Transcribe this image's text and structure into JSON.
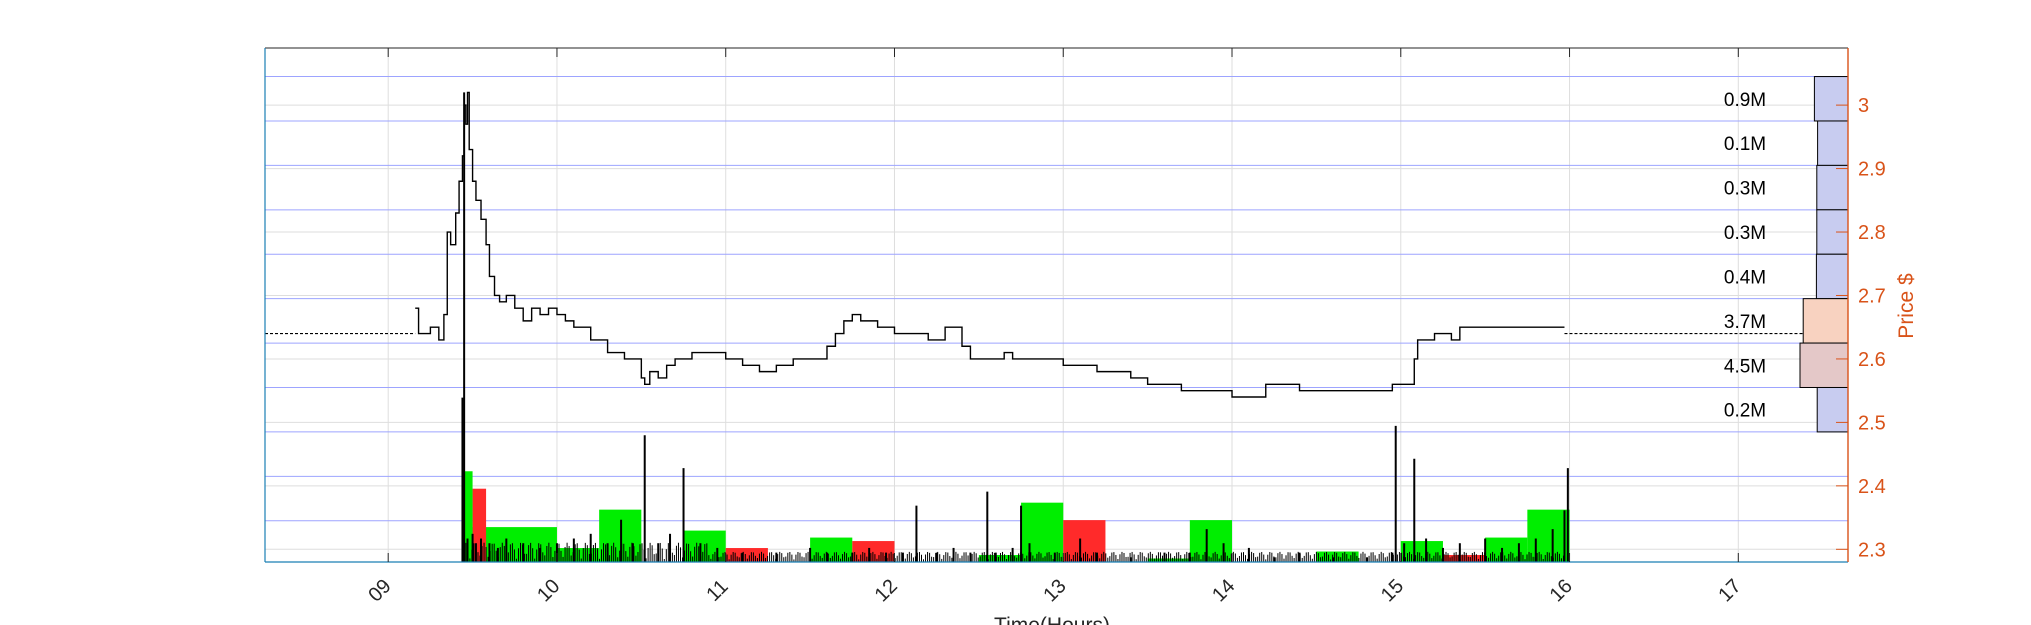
{
  "chart_data": {
    "type": "line",
    "title": "",
    "xlabel": "Time(Hours)",
    "ylabel": "Price $",
    "xlim": [
      8.27,
      17.65
    ],
    "ylim": [
      2.28,
      3.09
    ],
    "y_axis_side": "right",
    "grid": true,
    "x_ticks": [
      9,
      10,
      11,
      12,
      13,
      14,
      15,
      16,
      17
    ],
    "x_tick_labels": [
      "09",
      "10",
      "11",
      "12",
      "13",
      "14",
      "15",
      "16",
      "17"
    ],
    "y_ticks": [
      2.3,
      2.4,
      2.5,
      2.6,
      2.7,
      2.8,
      2.9,
      3.0
    ],
    "y_tick_labels": [
      "2.3",
      "2.4",
      "2.5",
      "2.6",
      "2.7",
      "2.8",
      "2.9",
      "3"
    ],
    "colors": {
      "price": "#000000",
      "up": "#00ee00",
      "down": "#ff2a2a",
      "profile_blue": "#c8ccf0",
      "profile_peach": "#f8d2c0",
      "profile_pink": "#e4c8c8",
      "price_band": "#9da4ff",
      "right_axis": "#d95319",
      "frame": "#1a7fb5"
    },
    "reference_price": 2.64,
    "price_series": {
      "name": "",
      "x": [
        9.16,
        9.18,
        9.2,
        9.25,
        9.3,
        9.33,
        9.35,
        9.37,
        9.4,
        9.42,
        9.44,
        9.45,
        9.46,
        9.47,
        9.48,
        9.5,
        9.52,
        9.55,
        9.58,
        9.6,
        9.63,
        9.66,
        9.7,
        9.75,
        9.8,
        9.85,
        9.9,
        9.95,
        10.0,
        10.05,
        10.1,
        10.2,
        10.3,
        10.4,
        10.5,
        10.52,
        10.55,
        10.6,
        10.65,
        10.7,
        10.8,
        10.9,
        11.0,
        11.1,
        11.2,
        11.3,
        11.4,
        11.5,
        11.6,
        11.65,
        11.7,
        11.75,
        11.8,
        11.9,
        12.0,
        12.1,
        12.2,
        12.3,
        12.4,
        12.45,
        12.5,
        12.6,
        12.65,
        12.7,
        12.8,
        12.9,
        13.0,
        13.1,
        13.2,
        13.3,
        13.4,
        13.5,
        13.6,
        13.7,
        13.8,
        13.9,
        14.0,
        14.05,
        14.1,
        14.2,
        14.3,
        14.4,
        14.5,
        14.6,
        14.7,
        14.8,
        14.9,
        14.95,
        15.0,
        15.05,
        15.08,
        15.1,
        15.15,
        15.2,
        15.3,
        15.35,
        15.4,
        15.5,
        15.6,
        15.7,
        15.8,
        15.9,
        15.97
      ],
      "y": [
        2.68,
        2.64,
        2.64,
        2.65,
        2.63,
        2.67,
        2.8,
        2.78,
        2.83,
        2.88,
        2.92,
        3.0,
        2.97,
        3.02,
        2.93,
        2.88,
        2.85,
        2.82,
        2.78,
        2.73,
        2.7,
        2.69,
        2.7,
        2.68,
        2.66,
        2.68,
        2.67,
        2.68,
        2.67,
        2.66,
        2.65,
        2.63,
        2.61,
        2.6,
        2.57,
        2.56,
        2.58,
        2.57,
        2.59,
        2.6,
        2.61,
        2.61,
        2.6,
        2.59,
        2.58,
        2.59,
        2.6,
        2.6,
        2.62,
        2.64,
        2.66,
        2.67,
        2.66,
        2.65,
        2.64,
        2.64,
        2.63,
        2.65,
        2.62,
        2.6,
        2.6,
        2.6,
        2.61,
        2.6,
        2.6,
        2.6,
        2.59,
        2.59,
        2.58,
        2.58,
        2.57,
        2.56,
        2.56,
        2.55,
        2.55,
        2.55,
        2.54,
        2.54,
        2.54,
        2.56,
        2.56,
        2.55,
        2.55,
        2.55,
        2.55,
        2.55,
        2.55,
        2.56,
        2.56,
        2.56,
        2.6,
        2.63,
        2.63,
        2.64,
        2.63,
        2.65,
        2.65,
        2.65,
        2.65,
        2.65,
        2.65,
        2.65,
        2.65
      ]
    },
    "volume_bars": {
      "x": [
        9.44,
        9.45,
        9.47,
        9.5,
        9.52,
        9.55,
        9.6,
        9.65,
        9.7,
        9.8,
        9.9,
        10.0,
        10.1,
        10.2,
        10.3,
        10.38,
        10.45,
        10.52,
        10.6,
        10.67,
        10.75,
        10.85,
        10.95,
        11.1,
        11.3,
        11.5,
        11.6,
        11.75,
        11.85,
        11.95,
        12.05,
        12.13,
        12.25,
        12.35,
        12.45,
        12.55,
        12.6,
        12.7,
        12.75,
        12.8,
        12.95,
        13.1,
        13.2,
        13.4,
        13.6,
        13.75,
        13.85,
        13.95,
        14.1,
        14.25,
        14.4,
        14.6,
        14.8,
        14.95,
        14.97,
        15.02,
        15.08,
        15.15,
        15.25,
        15.35,
        15.5,
        15.6,
        15.7,
        15.8,
        15.9,
        15.97,
        15.99
      ],
      "values": [
        0.35,
        1.0,
        0.05,
        0.06,
        0.04,
        0.05,
        0.04,
        0.03,
        0.05,
        0.04,
        0.03,
        0.04,
        0.05,
        0.06,
        0.04,
        0.09,
        0.04,
        0.27,
        0.04,
        0.06,
        0.2,
        0.04,
        0.03,
        0.02,
        0.02,
        0.03,
        0.02,
        0.02,
        0.03,
        0.02,
        0.02,
        0.12,
        0.02,
        0.03,
        0.02,
        0.15,
        0.02,
        0.03,
        0.12,
        0.04,
        0.02,
        0.05,
        0.02,
        0.01,
        0.02,
        0.02,
        0.07,
        0.04,
        0.03,
        0.01,
        0.02,
        0.01,
        0.01,
        0.02,
        0.29,
        0.04,
        0.22,
        0.05,
        0.03,
        0.04,
        0.05,
        0.03,
        0.04,
        0.05,
        0.07,
        0.11,
        0.2
      ]
    },
    "half_hour_volume": [
      {
        "start": 9.5,
        "end": 10.0,
        "value": 0.1,
        "direction": "up"
      },
      {
        "start": 9.5,
        "end": 9.58,
        "value": 0.21,
        "direction": "down"
      },
      {
        "start": 9.44,
        "end": 9.5,
        "value": 0.26,
        "direction": "up"
      },
      {
        "start": 10.0,
        "end": 10.25,
        "value": 0.04,
        "direction": "up"
      },
      {
        "start": 10.25,
        "end": 10.5,
        "value": 0.15,
        "direction": "up"
      },
      {
        "start": 10.75,
        "end": 11.0,
        "value": 0.09,
        "direction": "up"
      },
      {
        "start": 11.0,
        "end": 11.25,
        "value": 0.04,
        "direction": "down"
      },
      {
        "start": 11.5,
        "end": 11.75,
        "value": 0.07,
        "direction": "up"
      },
      {
        "start": 11.75,
        "end": 12.0,
        "value": 0.06,
        "direction": "down"
      },
      {
        "start": 12.5,
        "end": 12.75,
        "value": 0.02,
        "direction": "up"
      },
      {
        "start": 12.75,
        "end": 13.0,
        "value": 0.17,
        "direction": "up"
      },
      {
        "start": 13.0,
        "end": 13.25,
        "value": 0.12,
        "direction": "down"
      },
      {
        "start": 13.5,
        "end": 13.75,
        "value": 0.01,
        "direction": "up"
      },
      {
        "start": 13.75,
        "end": 14.0,
        "value": 0.12,
        "direction": "up"
      },
      {
        "start": 14.5,
        "end": 14.75,
        "value": 0.03,
        "direction": "up"
      },
      {
        "start": 15.0,
        "end": 15.25,
        "value": 0.06,
        "direction": "up"
      },
      {
        "start": 15.25,
        "end": 15.5,
        "value": 0.02,
        "direction": "down"
      },
      {
        "start": 15.5,
        "end": 15.75,
        "value": 0.07,
        "direction": "up"
      },
      {
        "start": 15.75,
        "end": 16.0,
        "value": 0.15,
        "direction": "up"
      }
    ],
    "volume_profile": [
      {
        "low": 2.975,
        "high": 3.045,
        "label": "0.9M",
        "value": 0.9
      },
      {
        "low": 2.905,
        "high": 2.975,
        "label": "0.1M",
        "value": 0.1
      },
      {
        "low": 2.835,
        "high": 2.905,
        "label": "0.3M",
        "value": 0.3
      },
      {
        "low": 2.765,
        "high": 2.835,
        "label": "0.3M",
        "value": 0.3
      },
      {
        "low": 2.695,
        "high": 2.765,
        "label": "0.4M",
        "value": 0.4
      },
      {
        "low": 2.625,
        "high": 2.695,
        "label": "3.7M",
        "value": 3.7
      },
      {
        "low": 2.555,
        "high": 2.625,
        "label": "4.5M",
        "value": 4.5
      },
      {
        "low": 2.485,
        "high": 2.555,
        "label": "0.2M",
        "value": 0.2
      }
    ]
  }
}
